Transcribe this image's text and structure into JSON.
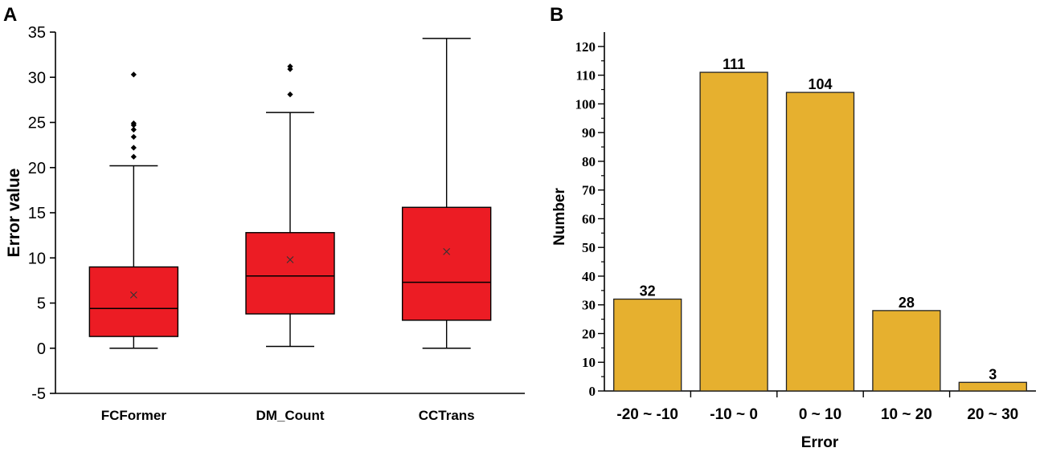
{
  "panel_a": {
    "label": "A",
    "chart_data": {
      "type": "box",
      "title": "",
      "xlabel": "",
      "ylabel": "Error value",
      "ylim": [
        -5,
        35
      ],
      "yticks": [
        -5,
        0,
        5,
        10,
        15,
        20,
        25,
        30,
        35
      ],
      "categories": [
        "FCFormer",
        "DM_Count",
        "CCTrans"
      ],
      "boxes": [
        {
          "name": "FCFormer",
          "whisker_low": 0,
          "q1": 1.3,
          "median": 4.4,
          "q3": 9.0,
          "whisker_high": 20.2,
          "mean": 5.9,
          "outliers": [
            21.2,
            22.2,
            23.4,
            24.2,
            24.7,
            24.9,
            30.3
          ]
        },
        {
          "name": "DM_Count",
          "whisker_low": 0.2,
          "q1": 3.8,
          "median": 8.0,
          "q3": 12.8,
          "whisker_high": 26.1,
          "mean": 9.8,
          "outliers": [
            28.1,
            30.9,
            31.2
          ]
        },
        {
          "name": "CCTrans",
          "whisker_low": 0,
          "q1": 3.1,
          "median": 7.3,
          "q3": 15.6,
          "whisker_high": 34.3,
          "mean": 10.7,
          "outliers": []
        }
      ],
      "box_color": "#ec1c24",
      "grid": false
    }
  },
  "panel_b": {
    "label": "B",
    "chart_data": {
      "type": "bar",
      "title": "",
      "xlabel": "Error",
      "ylabel": "Number",
      "categories": [
        "-20 ~ -10",
        "-10 ~ 0",
        "0 ~ 10",
        "10 ~ 20",
        "20 ~ 30"
      ],
      "values": [
        32,
        111,
        104,
        28,
        3
      ],
      "data_labels": [
        "32",
        "111",
        "104",
        "28",
        "3"
      ],
      "ylim": [
        0,
        125
      ],
      "yticks": [
        0,
        10,
        20,
        30,
        40,
        50,
        60,
        70,
        80,
        90,
        100,
        110,
        120
      ],
      "bar_color": "#e6b02f",
      "grid": false
    }
  }
}
